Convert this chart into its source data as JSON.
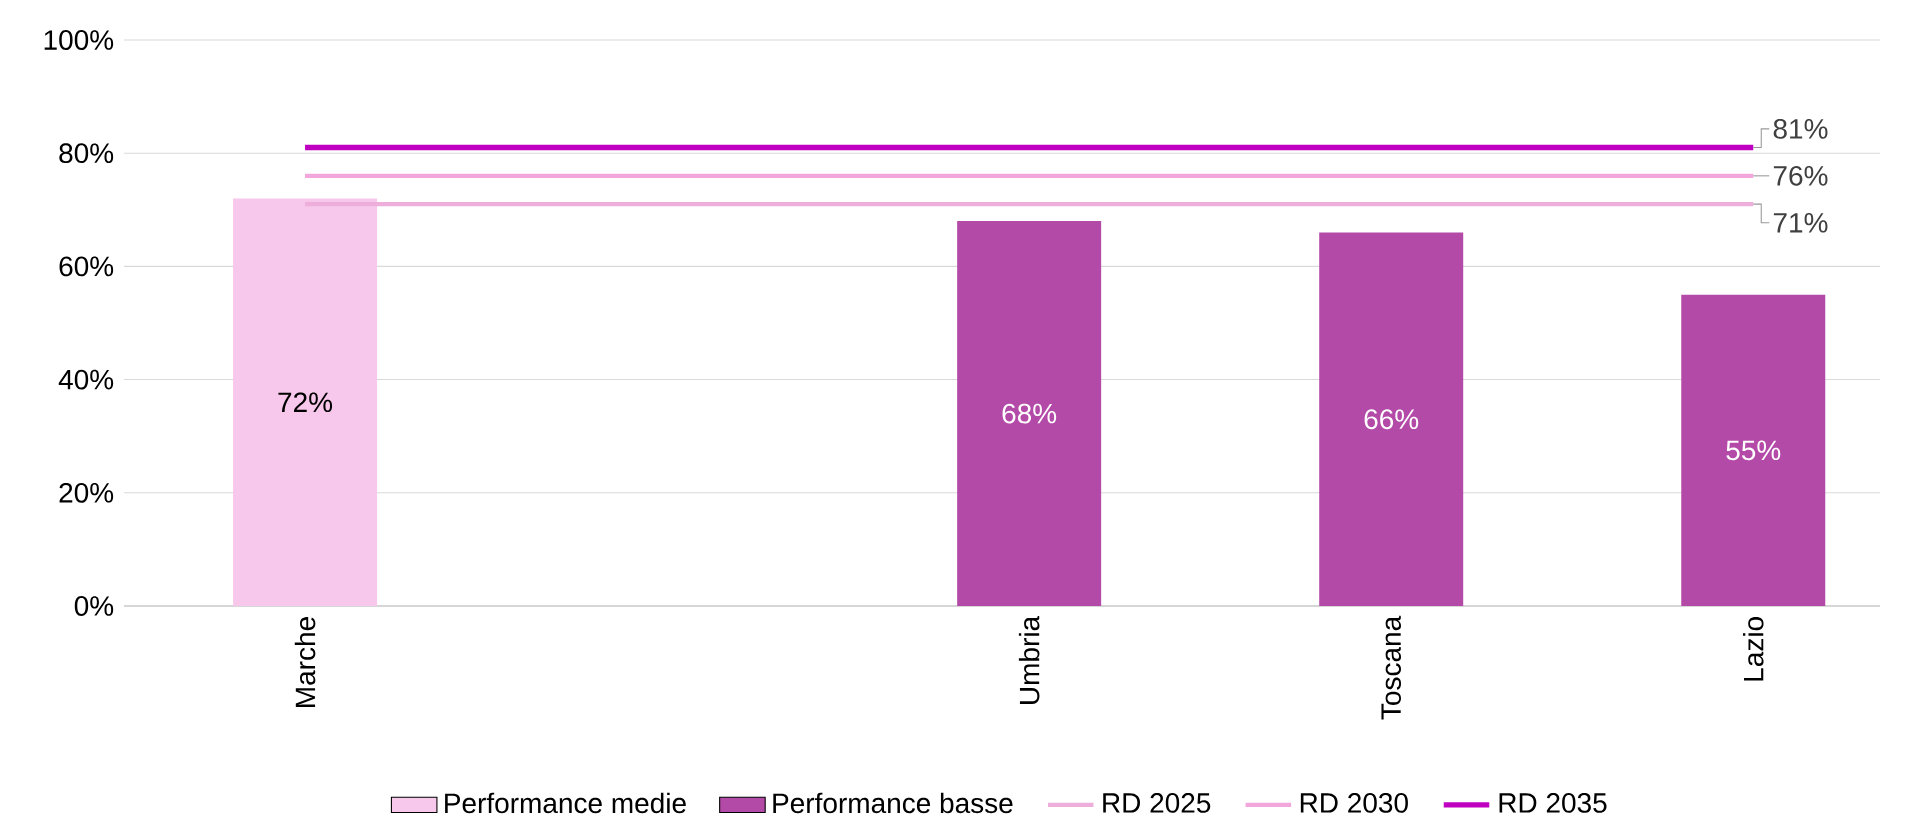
{
  "chart_data": {
    "type": "bar",
    "categories": [
      "Marche",
      null,
      "Umbria",
      "Toscana",
      "Lazio"
    ],
    "series": [
      {
        "name": "Performance medie",
        "color": "#f7c8eb",
        "values": [
          72,
          null,
          null,
          null,
          null
        ],
        "value_labels": [
          "72%",
          null,
          null,
          null,
          null
        ]
      },
      {
        "name": "Performance basse",
        "color": "#b44aa8",
        "values": [
          null,
          null,
          68,
          66,
          55
        ],
        "value_labels": [
          null,
          null,
          "68%",
          "66%",
          "55%"
        ]
      },
      {
        "name": "RD 2025",
        "type": "line",
        "color": "#eeaedb",
        "values": [
          71,
          71,
          71,
          71,
          71
        ],
        "value_labels": [
          null,
          null,
          null,
          null,
          "71%"
        ]
      },
      {
        "name": "RD 2030",
        "type": "line",
        "color": "#f2a6dc",
        "values": [
          76,
          76,
          76,
          76,
          76
        ],
        "value_labels": [
          null,
          null,
          null,
          null,
          "76%"
        ]
      },
      {
        "name": "RD 2035",
        "type": "line",
        "color": "#c000c0",
        "values": [
          81,
          81,
          81,
          81,
          81
        ],
        "value_labels": [
          null,
          null,
          null,
          null,
          "81%"
        ]
      }
    ],
    "ylim": [
      0,
      100
    ],
    "yticks": [
      {
        "value": 0,
        "label": "0%"
      },
      {
        "value": 20,
        "label": "20%"
      },
      {
        "value": 40,
        "label": "40%"
      },
      {
        "value": 60,
        "label": "60%"
      },
      {
        "value": 80,
        "label": "80%"
      },
      {
        "value": 100,
        "label": "100%"
      }
    ],
    "grid": "y",
    "legend": "bottom"
  }
}
